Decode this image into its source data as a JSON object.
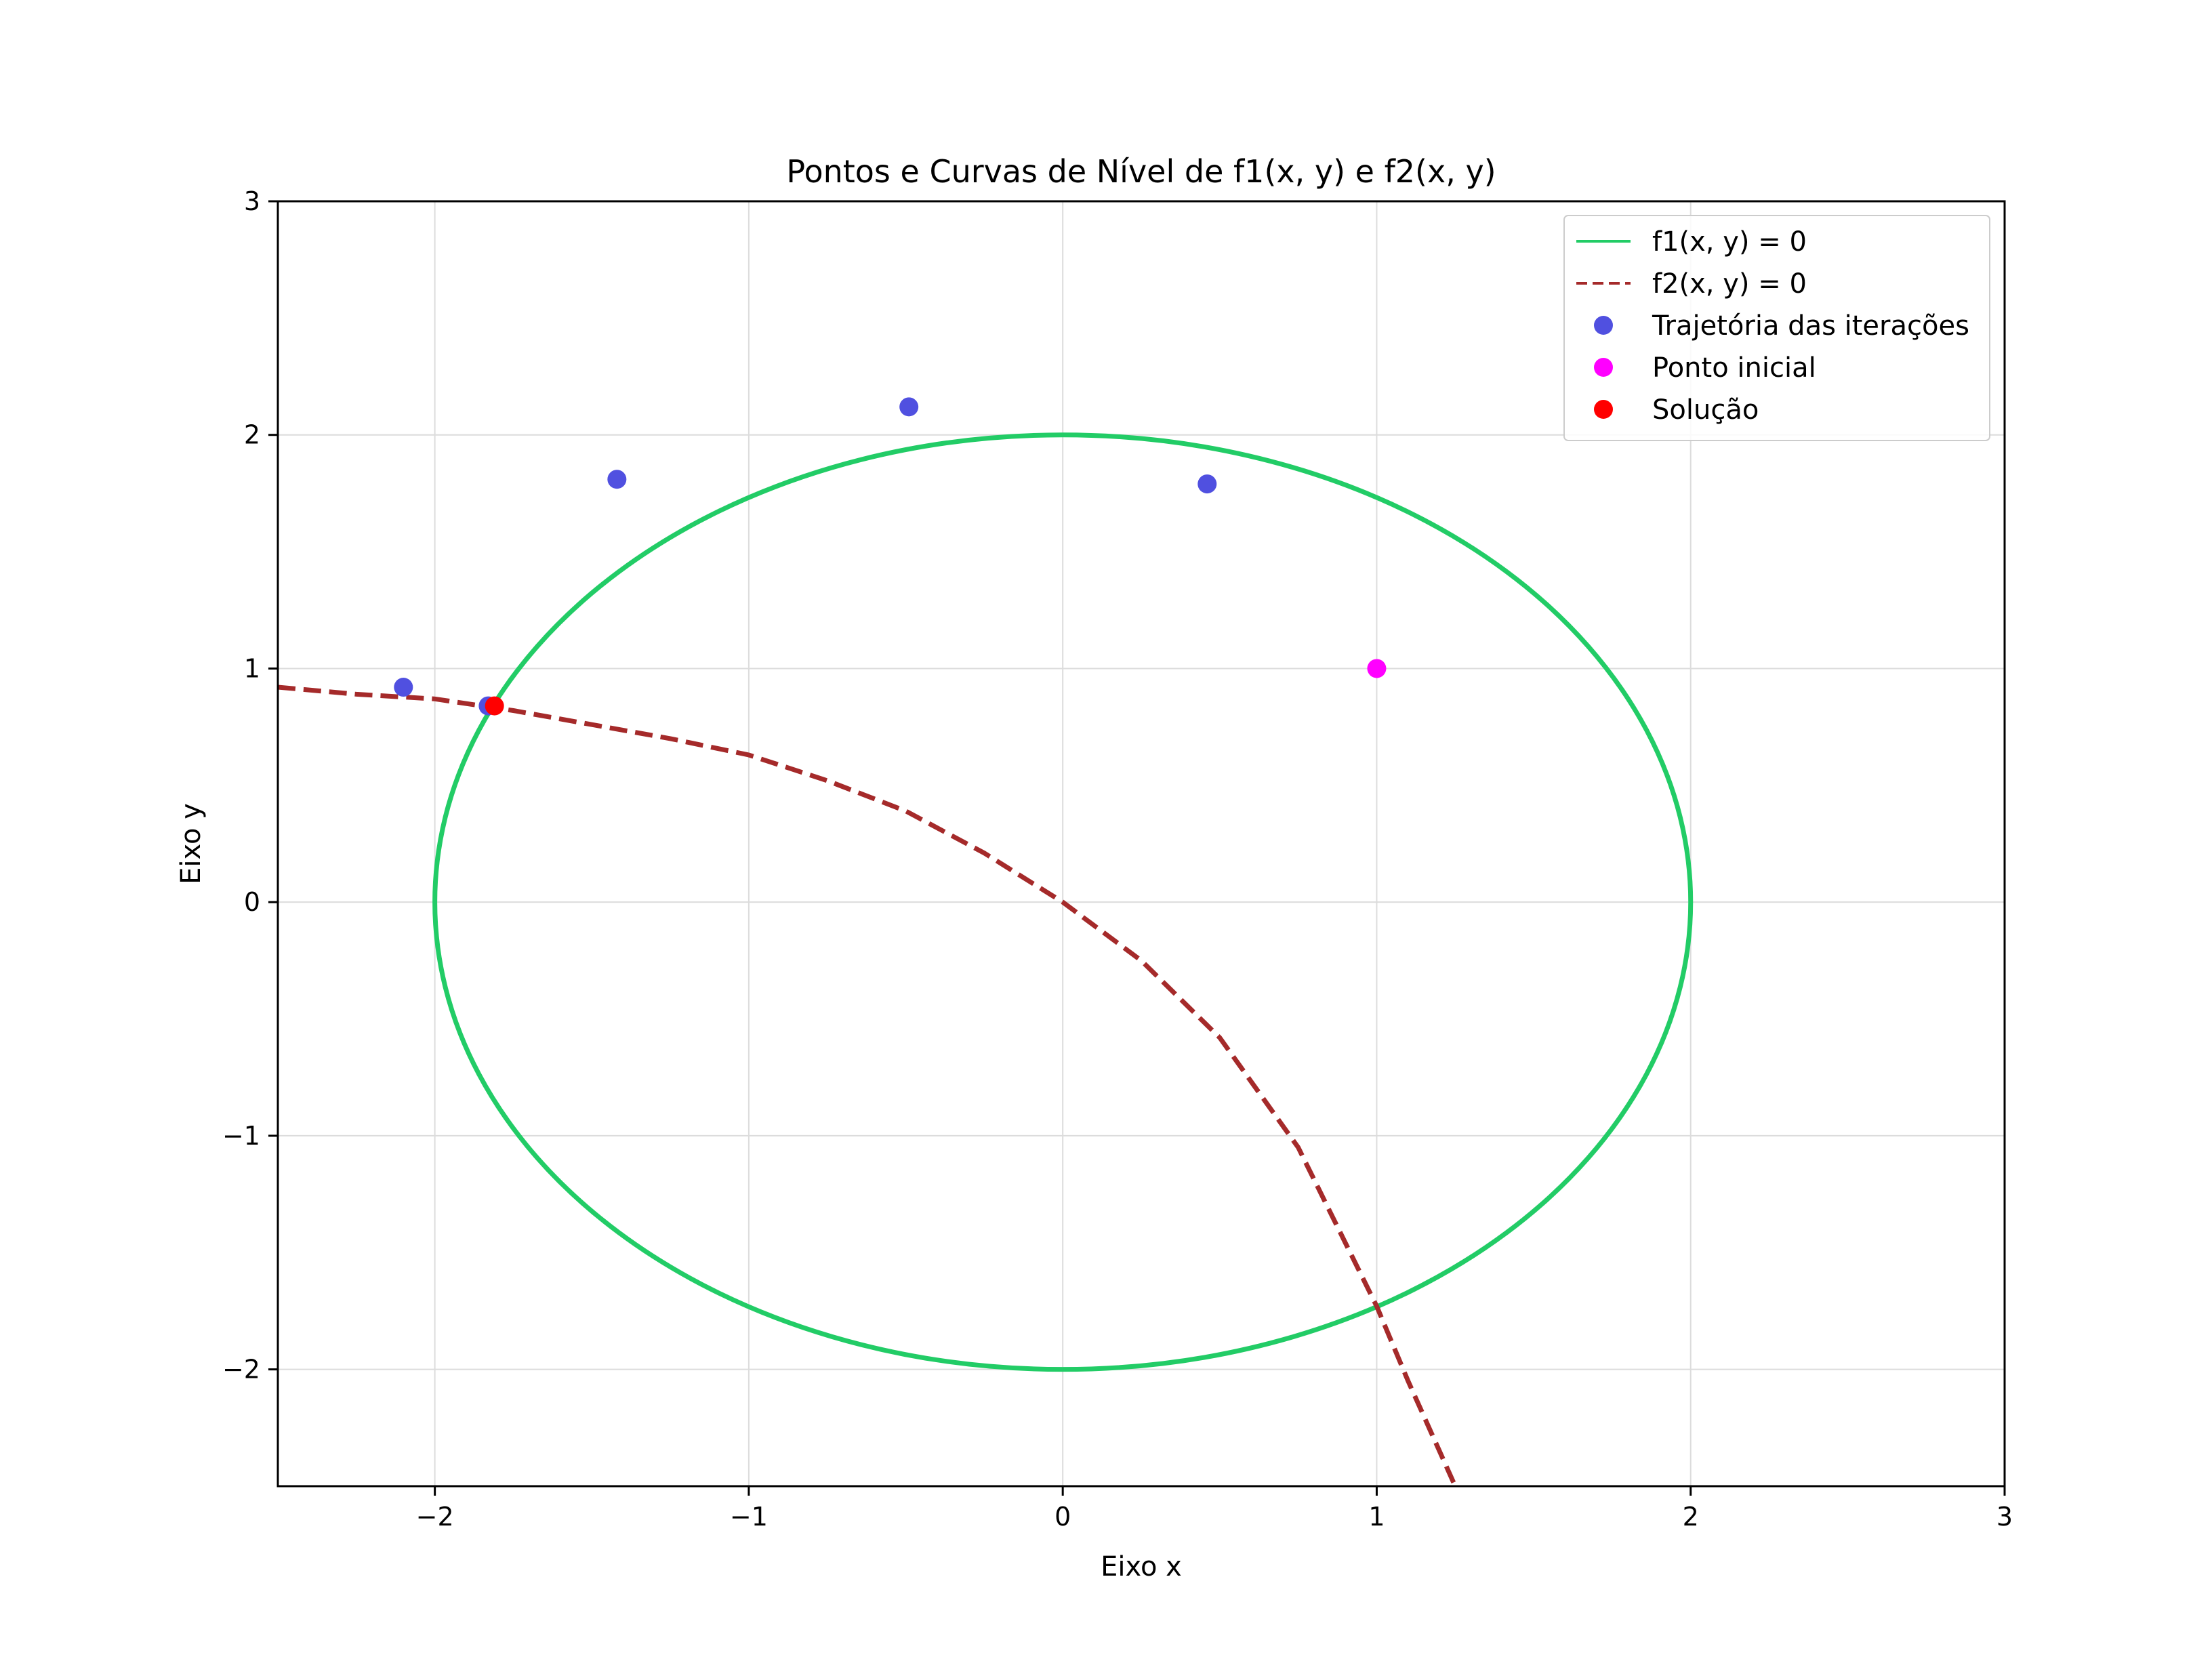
{
  "chart_data": {
    "type": "scatter",
    "title": "Pontos e Curvas de Nível de f1(x, y) e f2(x, y)",
    "xlabel": "Eixo x",
    "ylabel": "Eixo y",
    "xlim": [
      -2.5,
      3
    ],
    "ylim": [
      -2.5,
      3
    ],
    "xticks": [
      -2,
      -1,
      0,
      1,
      2,
      3
    ],
    "yticks": [
      -2,
      -1,
      0,
      1,
      2,
      3
    ],
    "xtick_labels": [
      "−2",
      "−1",
      "0",
      "1",
      "2",
      "3"
    ],
    "ytick_labels": [
      "−2",
      "−1",
      "0",
      "1",
      "2",
      "3"
    ],
    "grid": true,
    "legend_position": "top-right",
    "series": [
      {
        "name": "f1(x, y) = 0",
        "kind": "line",
        "style": "solid",
        "color": "#22cc66",
        "center": [
          0,
          0
        ],
        "radii": [
          2,
          2
        ]
      },
      {
        "name": "f2(x, y) = 0",
        "kind": "line",
        "style": "dashed",
        "color": "#a52a2a",
        "x": [
          -2.5,
          -2.25,
          -2.0,
          -1.75,
          -1.5,
          -1.25,
          -1.0,
          -0.75,
          -0.5,
          -0.25,
          0.0,
          0.25,
          0.5,
          0.75,
          1.0,
          1.1,
          1.25
        ],
        "y": [
          0.92,
          0.89,
          0.87,
          0.82,
          0.76,
          0.7,
          0.63,
          0.52,
          0.39,
          0.21,
          0.0,
          -0.25,
          -0.58,
          -1.05,
          -1.73,
          -2.05,
          -2.5
        ]
      },
      {
        "name": "Trajetória das iterações",
        "kind": "points",
        "color": "#5050e0",
        "x": [
          0.46,
          -0.49,
          -1.42,
          -2.1,
          -1.83
        ],
        "y": [
          1.79,
          2.12,
          1.81,
          0.92,
          0.84
        ]
      },
      {
        "name": "Ponto inicial",
        "kind": "points",
        "color": "#ff00ff",
        "x": [
          1.0
        ],
        "y": [
          1.0
        ]
      },
      {
        "name": "Solução",
        "kind": "points",
        "color": "#ff0000",
        "x": [
          -1.81
        ],
        "y": [
          0.84
        ]
      }
    ]
  }
}
